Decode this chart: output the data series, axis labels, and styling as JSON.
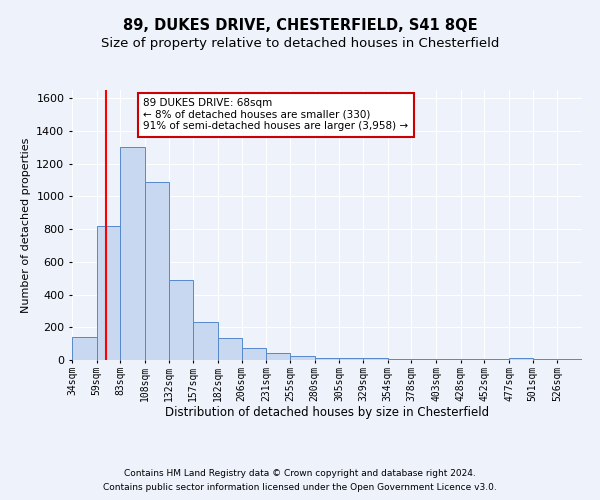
{
  "title": "89, DUKES DRIVE, CHESTERFIELD, S41 8QE",
  "subtitle": "Size of property relative to detached houses in Chesterfield",
  "xlabel": "Distribution of detached houses by size in Chesterfield",
  "ylabel": "Number of detached properties",
  "footnote1": "Contains HM Land Registry data © Crown copyright and database right 2024.",
  "footnote2": "Contains public sector information licensed under the Open Government Licence v3.0.",
  "annotation_line1": "89 DUKES DRIVE: 68sqm",
  "annotation_line2": "← 8% of detached houses are smaller (330)",
  "annotation_line3": "91% of semi-detached houses are larger (3,958) →",
  "property_size": 68,
  "bar_labels": [
    "34sqm",
    "59sqm",
    "83sqm",
    "108sqm",
    "132sqm",
    "157sqm",
    "182sqm",
    "206sqm",
    "231sqm",
    "255sqm",
    "280sqm",
    "305sqm",
    "329sqm",
    "354sqm",
    "378sqm",
    "403sqm",
    "428sqm",
    "452sqm",
    "477sqm",
    "501sqm",
    "526sqm"
  ],
  "bar_edges": [
    34,
    59,
    83,
    108,
    132,
    157,
    182,
    206,
    231,
    255,
    280,
    305,
    329,
    354,
    378,
    403,
    428,
    452,
    477,
    501,
    526
  ],
  "bar_heights": [
    140,
    820,
    1300,
    1090,
    490,
    235,
    135,
    75,
    45,
    25,
    15,
    12,
    10,
    8,
    5,
    5,
    5,
    5,
    15,
    5,
    5
  ],
  "bar_color": "#c8d8f0",
  "bar_edge_color": "#5588cc",
  "red_line_x": 68,
  "ylim": [
    0,
    1650
  ],
  "xlim_left": 34,
  "xlim_right": 551,
  "background_color": "#eef2fb",
  "grid_color": "#ffffff",
  "annotation_box_facecolor": "#ffffff",
  "annotation_box_edgecolor": "#cc0000",
  "title_fontsize": 10.5,
  "subtitle_fontsize": 9.5,
  "xlabel_fontsize": 8.5,
  "ylabel_fontsize": 8,
  "tick_fontsize": 7,
  "annotation_fontsize": 7.5,
  "footnote_fontsize": 6.5,
  "ytick_values": [
    0,
    200,
    400,
    600,
    800,
    1000,
    1200,
    1400,
    1600
  ]
}
